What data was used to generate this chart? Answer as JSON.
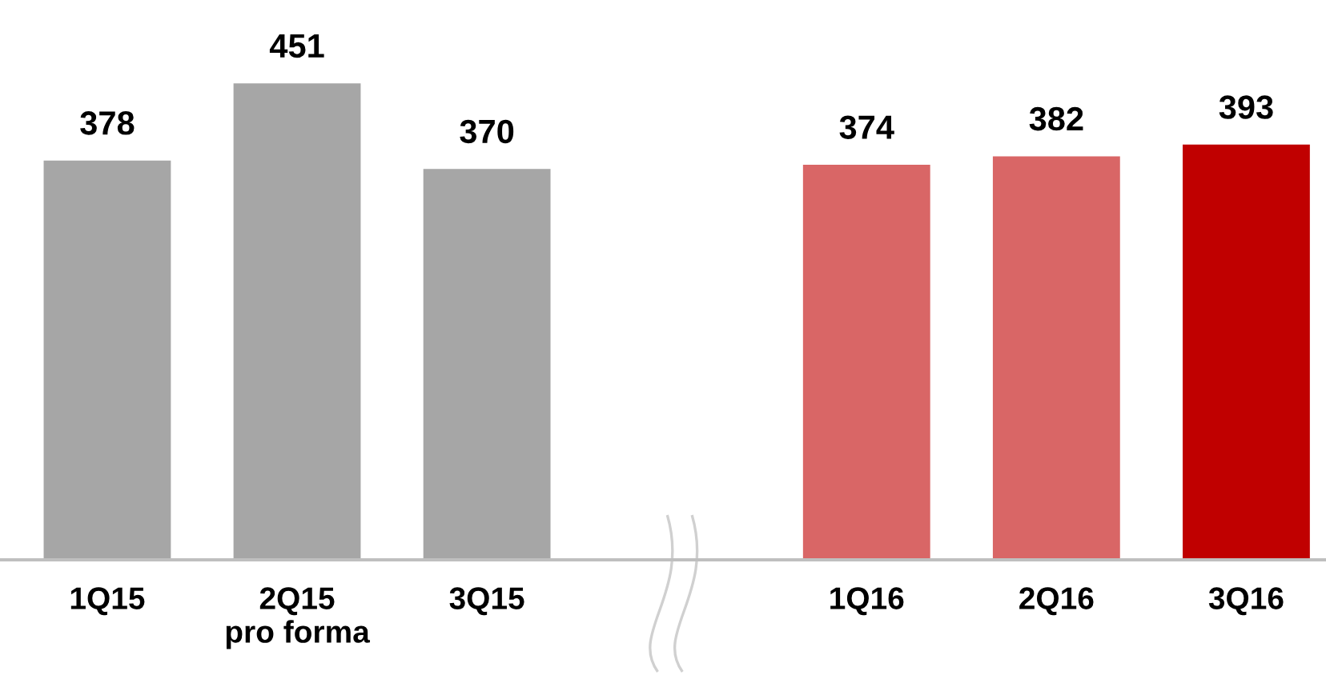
{
  "chart_data": {
    "type": "bar",
    "categories": [
      "1Q15",
      "2Q15\npro forma",
      "3Q15",
      null,
      "1Q16",
      "2Q16",
      "3Q16"
    ],
    "values": [
      378,
      451,
      370,
      null,
      374,
      382,
      393
    ],
    "colors": [
      "#a6a6a6",
      "#a6a6a6",
      "#a6a6a6",
      null,
      "#d96666",
      "#d96666",
      "#c00000"
    ],
    "data_labels": true,
    "tick_labels": "x"
  }
}
